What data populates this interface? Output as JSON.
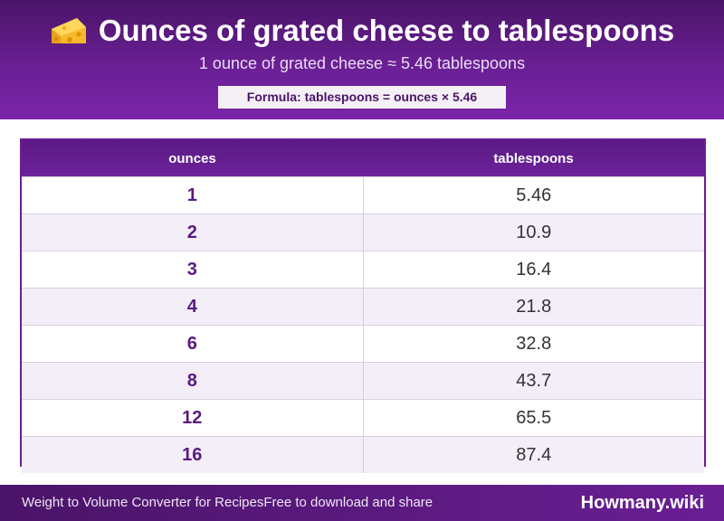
{
  "header": {
    "title": "Ounces of grated cheese to tablespoons",
    "subtitle": "1 ounce of grated cheese ≈ 5.46 tablespoons",
    "formula": "Formula: tablespoons = ounces × 5.46",
    "icon": "cheese-icon"
  },
  "table": {
    "columns": [
      "ounces",
      "tablespoons"
    ],
    "rows": [
      {
        "ounces": "1",
        "tablespoons": "5.46"
      },
      {
        "ounces": "2",
        "tablespoons": "10.9"
      },
      {
        "ounces": "3",
        "tablespoons": "16.4"
      },
      {
        "ounces": "4",
        "tablespoons": "21.8"
      },
      {
        "ounces": "6",
        "tablespoons": "32.8"
      },
      {
        "ounces": "8",
        "tablespoons": "43.7"
      },
      {
        "ounces": "12",
        "tablespoons": "65.5"
      },
      {
        "ounces": "16",
        "tablespoons": "87.4"
      }
    ]
  },
  "footer": {
    "left_text": "Weight to Volume Converter for RecipesFree to download and share",
    "brand": "Howmany.wiki"
  },
  "colors": {
    "accent": "#6a1f94",
    "header_dark": "#4a1468",
    "row_alt": "#f4eef9"
  }
}
